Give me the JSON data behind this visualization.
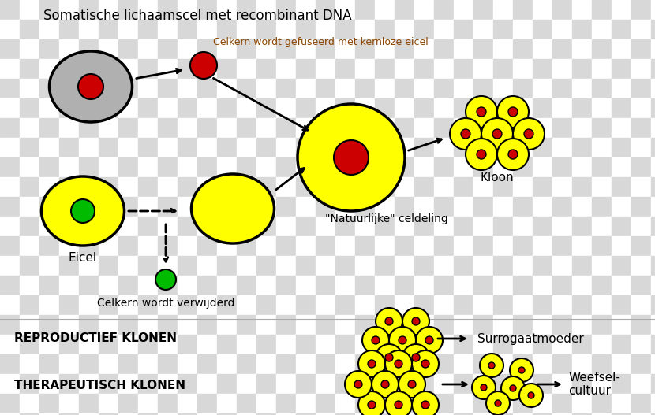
{
  "bg_checker_color1": "#d8d8d8",
  "bg_checker_color2": "#ffffff",
  "checker_size": 25,
  "title": "Somatische lichaamscel met recombinant DNA",
  "title_color": "#000000",
  "title_fontsize": 12,
  "label_celkern_fused": "Celkern wordt gefuseerd met kernloze eicel",
  "label_celkern_fused_color": "#8B4500",
  "label_celkern_removed": "Celkern wordt verwijderd",
  "label_eicel": "Eicel",
  "label_kloon": "Kloon",
  "label_celdeling": "\"Natuurlijke\" celdeling",
  "label_reproductief": "REPRODUCTIEF KLONEN",
  "label_therapeutisch": "THERAPEUTISCH KLONEN",
  "label_surrogaat": "Surrogaatmoeder",
  "label_weefsel": "Weefsel-\ncultuur",
  "yellow": "#ffff00",
  "gray": "#b0b0b0",
  "red": "#cc0000",
  "green": "#00bb00",
  "black": "#000000",
  "white": "#ffffff",
  "fig_w": 8.3,
  "fig_h": 5.27,
  "dpi": 100
}
